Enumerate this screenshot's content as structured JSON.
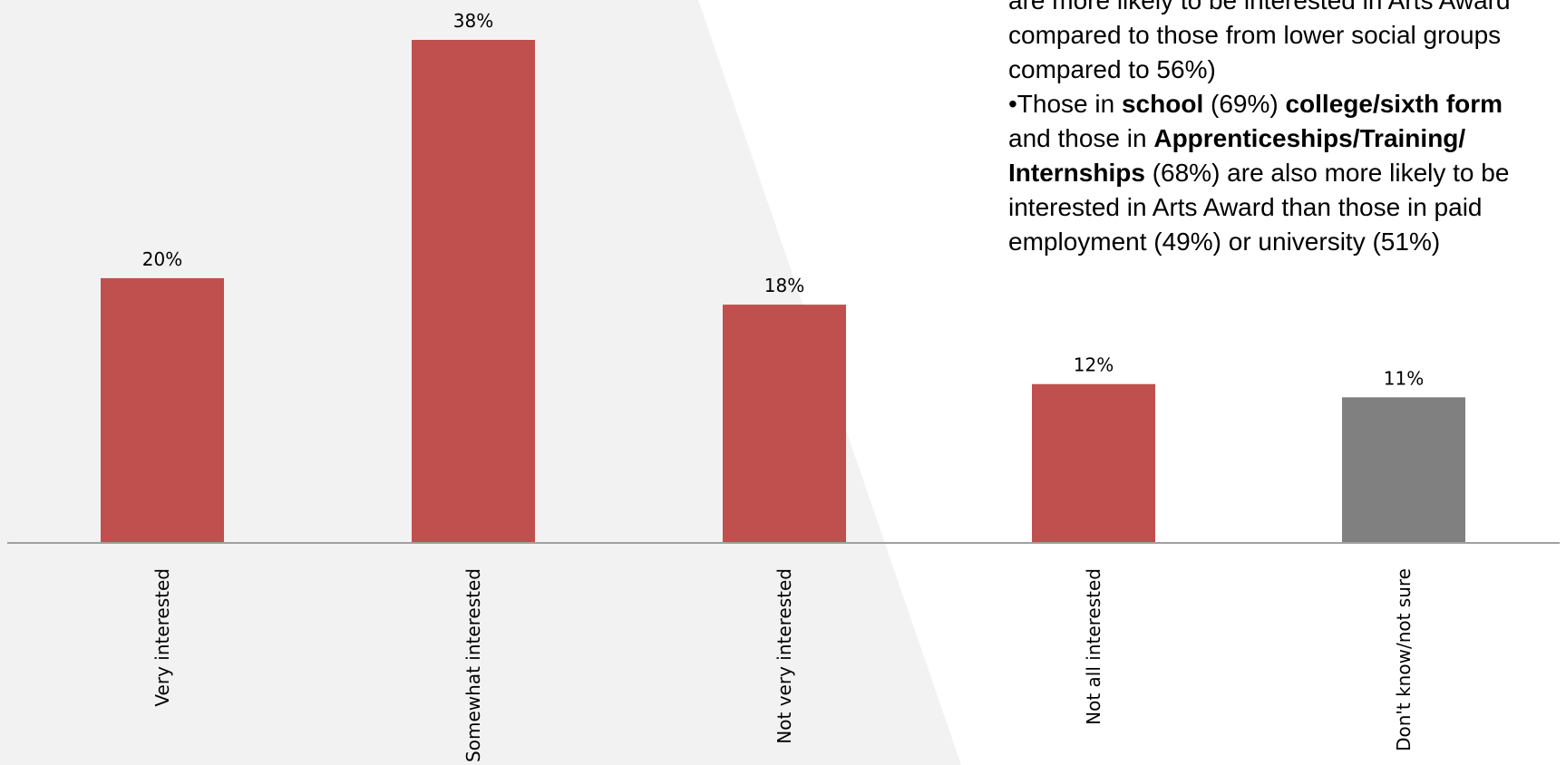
{
  "chart_data": {
    "type": "bar",
    "categories": [
      "Very interested",
      "Somewhat interested",
      "Not very interested",
      "Not all interested",
      "Don't know/not sure"
    ],
    "values": [
      20,
      38,
      18,
      12,
      11
    ],
    "value_labels": [
      "20%",
      "38%",
      "18%",
      "12%",
      "11%"
    ],
    "ylim": [
      0,
      40
    ],
    "grid": false,
    "legend": "none",
    "colors": {
      "bar": "#c0504d",
      "bar_unsure": "#808080",
      "axis": "#a0a0a0",
      "background_shape": "#f2f2f2"
    }
  },
  "callout": {
    "line1": "are more likely to be interested in Arts Award",
    "line2": "compared to those from lower social groups",
    "line3": "compared to 56%)",
    "p2_prefix": "•Those in ",
    "p2_school": "school",
    "p2_school_pct": " (69%) ",
    "p2_college": "college/sixth form",
    "p2_and": "and those in ",
    "p2_appr": "Apprenticeships/Training/",
    "p2_intern": "Internships",
    "p2_rest1": " (68%) are also more likely to be",
    "p2_rest2": "interested in Arts Award than those in paid",
    "p2_rest3": "employment (49%) or university (51%)"
  }
}
